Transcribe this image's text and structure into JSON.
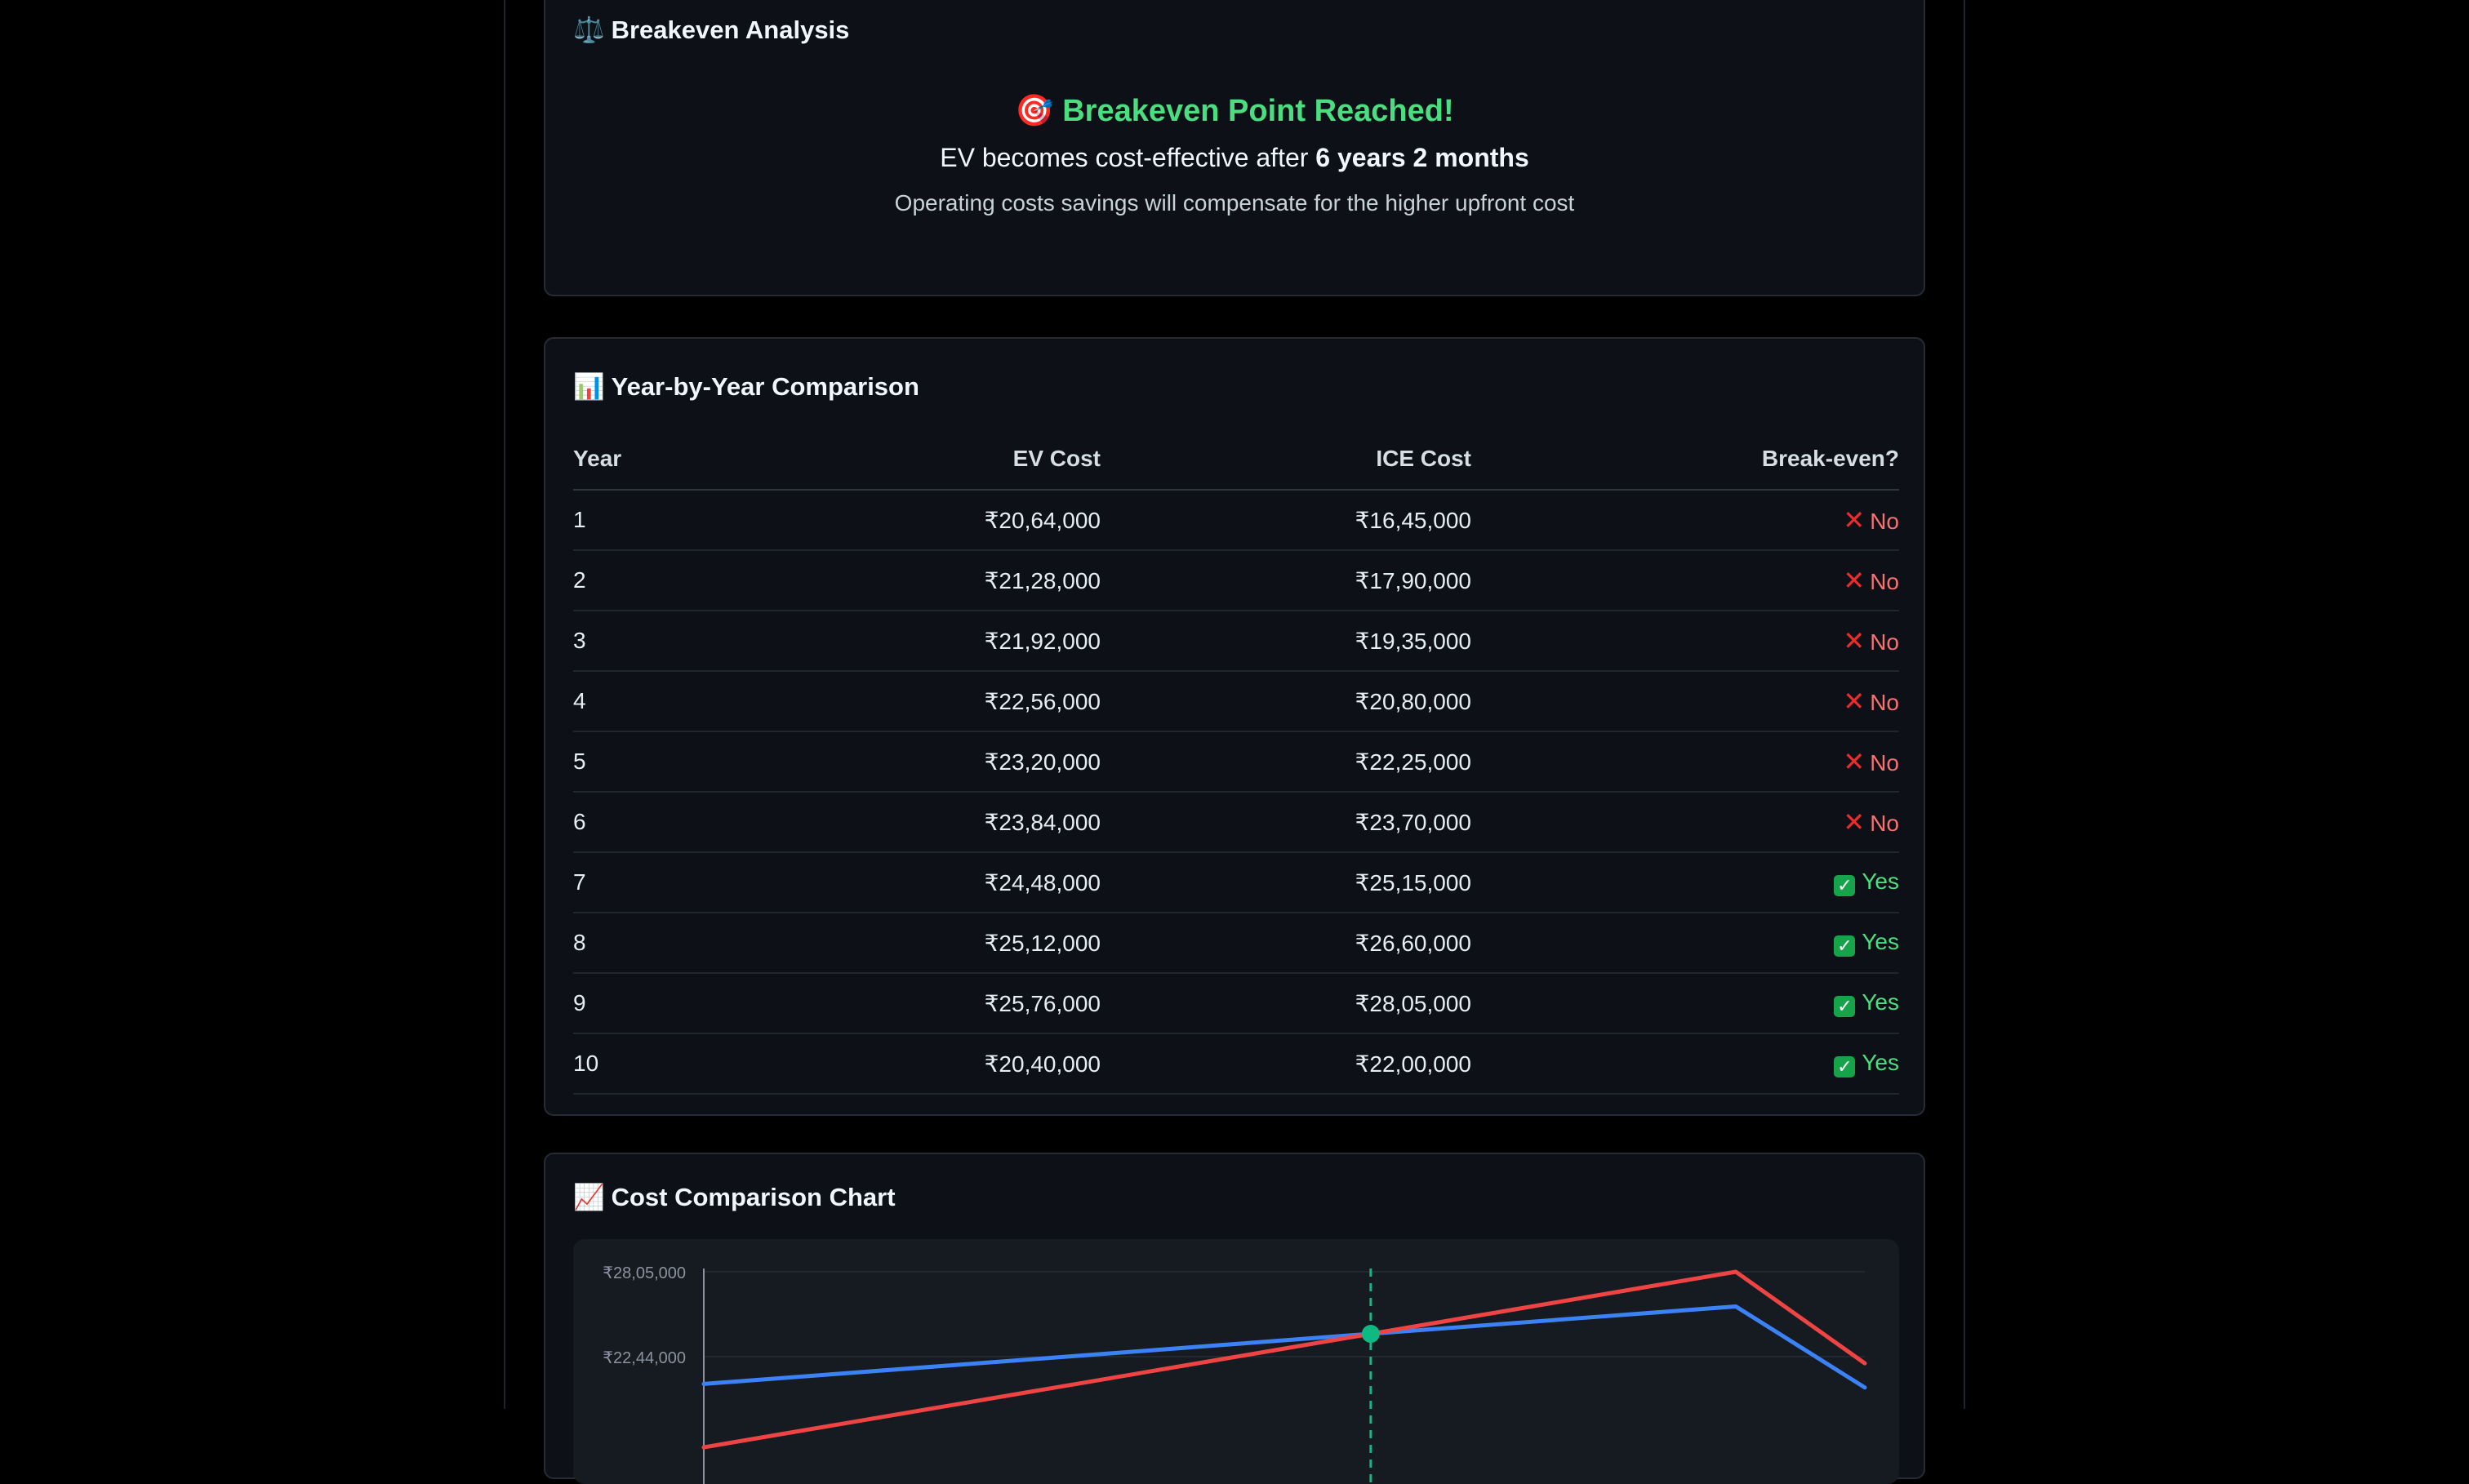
{
  "breakeven": {
    "icon": "scale-icon",
    "title": "Breakeven Analysis",
    "headline_icon": "target-icon",
    "headline": "Breakeven Point Reached!",
    "line_prefix": "EV becomes cost-effective after",
    "line_value": "6 years 2 months",
    "subtext": "Operating costs savings will compensate for the higher upfront cost"
  },
  "comparison": {
    "icon": "bar-chart-icon",
    "title": "Year-by-Year Comparison",
    "columns": [
      "Year",
      "EV Cost",
      "ICE Cost",
      "Break-even?"
    ],
    "rows": [
      {
        "year": "1",
        "ev": "₹20,64,000",
        "ice": "₹16,45,000",
        "breakeven": "No"
      },
      {
        "year": "2",
        "ev": "₹21,28,000",
        "ice": "₹17,90,000",
        "breakeven": "No"
      },
      {
        "year": "3",
        "ev": "₹21,92,000",
        "ice": "₹19,35,000",
        "breakeven": "No"
      },
      {
        "year": "4",
        "ev": "₹22,56,000",
        "ice": "₹20,80,000",
        "breakeven": "No"
      },
      {
        "year": "5",
        "ev": "₹23,20,000",
        "ice": "₹22,25,000",
        "breakeven": "No"
      },
      {
        "year": "6",
        "ev": "₹23,84,000",
        "ice": "₹23,70,000",
        "breakeven": "No"
      },
      {
        "year": "7",
        "ev": "₹24,48,000",
        "ice": "₹25,15,000",
        "breakeven": "Yes"
      },
      {
        "year": "8",
        "ev": "₹25,12,000",
        "ice": "₹26,60,000",
        "breakeven": "Yes"
      },
      {
        "year": "9",
        "ev": "₹25,76,000",
        "ice": "₹28,05,000",
        "breakeven": "Yes"
      },
      {
        "year": "10",
        "ev": "₹20,40,000",
        "ice": "₹22,00,000",
        "breakeven": "Yes"
      }
    ]
  },
  "chart": {
    "icon": "line-chart-icon",
    "title": "Cost Comparison Chart"
  },
  "chart_data": {
    "type": "line",
    "title": "",
    "x": [
      1,
      2,
      3,
      4,
      5,
      6,
      7,
      8,
      9,
      10
    ],
    "series": [
      {
        "values": [
          2064000,
          2128000,
          2192000,
          2256000,
          2320000,
          2384000,
          2448000,
          2512000,
          2576000,
          2040000
        ],
        "color": "#3b82f6"
      },
      {
        "values": [
          1645000,
          1790000,
          1935000,
          2080000,
          2225000,
          2370000,
          2515000,
          2660000,
          2805000,
          2200000
        ],
        "color": "#ef4444"
      }
    ],
    "y_tick_labels": [
      "₹28,05,000",
      "₹22,44,000"
    ],
    "y_ticks": [
      2805000,
      2244000
    ],
    "breakeven_x": 6.17,
    "breakeven_color": "#10b981",
    "grid": true
  }
}
